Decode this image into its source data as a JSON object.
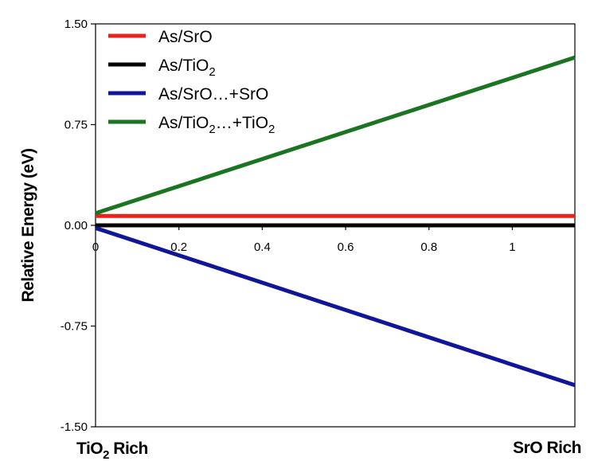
{
  "chart_data": {
    "type": "line",
    "ylabel": "Relative Energy (eV)",
    "xlabel": "",
    "xlim": [
      0,
      1.15
    ],
    "ylim": [
      -1.5,
      1.5
    ],
    "x_ticks": [
      "0",
      "0.2",
      "0.4",
      "0.6",
      "0.8",
      "1"
    ],
    "x_tick_values": [
      0,
      0.2,
      0.4,
      0.6,
      0.8,
      1
    ],
    "y_ticks": [
      "1.50",
      "0.75",
      "0.00",
      "-0.75",
      "-1.50"
    ],
    "y_tick_values": [
      1.5,
      0.75,
      0,
      -0.75,
      -1.5
    ],
    "bottom_left_label": {
      "main": "TiO",
      "sub": "2",
      "rest": " Rich"
    },
    "bottom_right_label": "SrO Rich",
    "legend_position": "top-left",
    "grid": false,
    "series": [
      {
        "name": "As/SrO",
        "label": {
          "main": "As/SrO",
          "sub": "",
          "rest": ""
        },
        "color": "#e8231d",
        "x": [
          0,
          1.15
        ],
        "y": [
          0.07,
          0.07
        ]
      },
      {
        "name": "As/TiO2",
        "label": {
          "main": "As/TiO",
          "sub": "2",
          "rest": ""
        },
        "color": "#000000",
        "x": [
          0,
          1.15
        ],
        "y": [
          0.0,
          0.0
        ]
      },
      {
        "name": "As/SrO…+SrO",
        "label": {
          "main": "As/SrO…+SrO",
          "sub": "",
          "rest": ""
        },
        "color": "#10159a",
        "x": [
          0,
          1.15
        ],
        "y": [
          -0.02,
          -1.19
        ]
      },
      {
        "name": "As/TiO2…+TiO2",
        "label": {
          "main": "As/TiO",
          "sub": "2",
          "rest": "…+TiO",
          "sub2": "2"
        },
        "color": "#1a7421",
        "x": [
          0,
          1.15
        ],
        "y": [
          0.09,
          1.25
        ]
      }
    ]
  }
}
